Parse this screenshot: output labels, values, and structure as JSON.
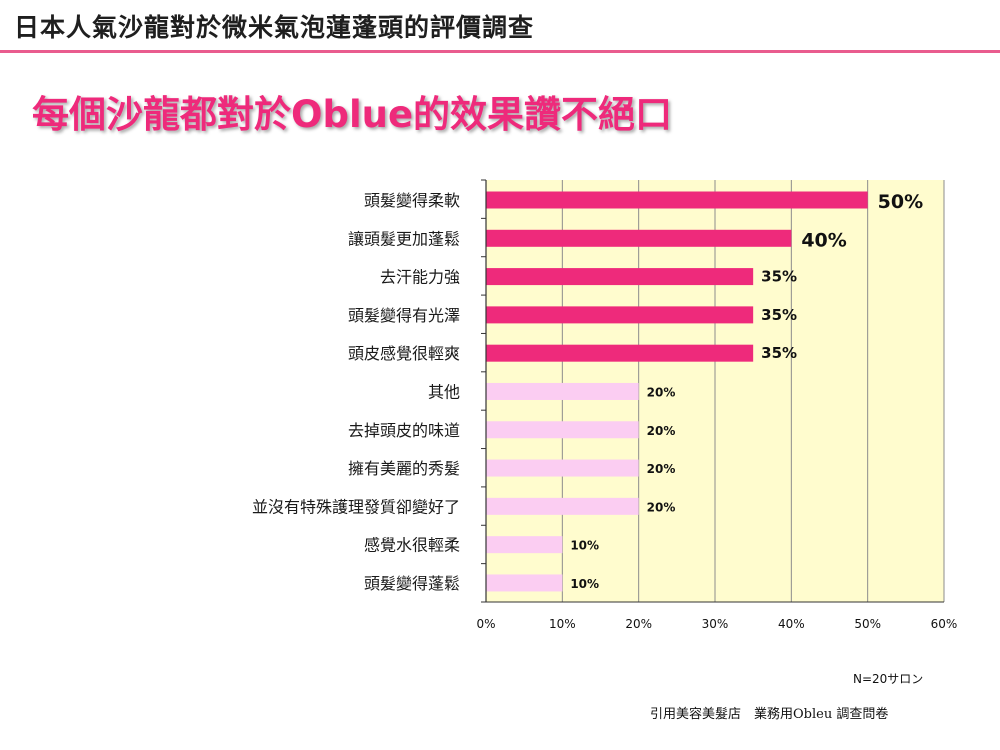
{
  "header": {
    "title": "日本人氣沙龍對於微米氣泡蓮蓬頭的評價調查",
    "headline": "每個沙龍都對於Oblue的效果讚不絕口"
  },
  "colors": {
    "title_rule": "#e95c8e",
    "headline": "#ee2a7b",
    "bar_strong": "#ee2a7b",
    "bar_light": "#fbcdf2",
    "plot_bg": "#fffcce",
    "grid": "#8c8c8c"
  },
  "chart_data": {
    "type": "bar",
    "orientation": "horizontal",
    "categories": [
      "頭髮變得柔軟",
      "讓頭髮更加蓬鬆",
      "去汗能力強",
      "頭髮變得有光澤",
      "頭皮感覺很輕爽",
      "其他",
      "去掉頭皮的味道",
      "擁有美麗的秀髮",
      "並沒有特殊護理發質卻變好了",
      "感覺水很輕柔",
      "頭髮變得蓬鬆"
    ],
    "values": [
      50,
      40,
      35,
      35,
      35,
      20,
      20,
      20,
      20,
      10,
      10
    ],
    "value_labels": [
      "50%",
      "40%",
      "35%",
      "35%",
      "35%",
      "20%",
      "20%",
      "20%",
      "20%",
      "10%",
      "10%"
    ],
    "highlighted": [
      true,
      true,
      true,
      true,
      true,
      false,
      false,
      false,
      false,
      false,
      false
    ],
    "x_ticks": [
      "0%",
      "10%",
      "20%",
      "30%",
      "40%",
      "50%",
      "60%"
    ],
    "xlim": [
      0,
      60
    ],
    "grid": true,
    "legend": "none"
  },
  "footer": {
    "sample_note": "N=20サロン",
    "source": "引用美容美髮店　業務用Obleu 調查問卷"
  }
}
